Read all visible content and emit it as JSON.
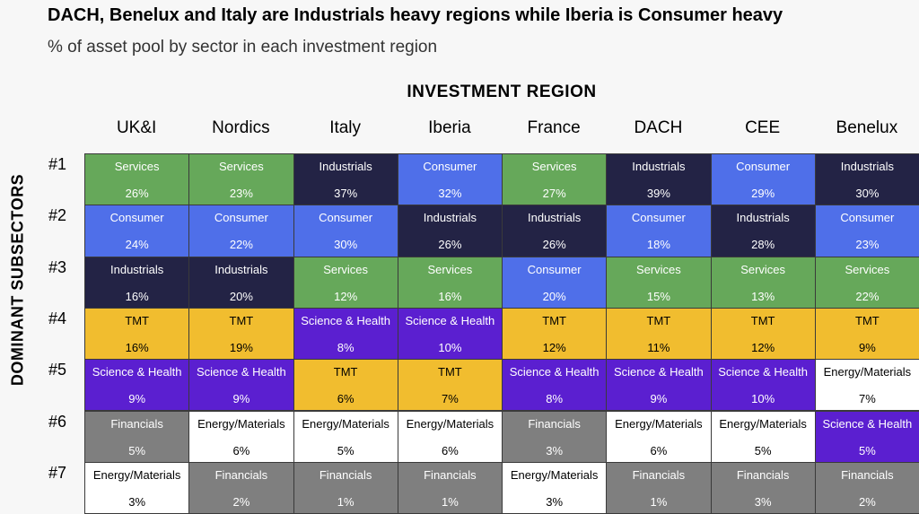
{
  "title": "DACH, Benelux and Italy are Industrials heavy regions while Iberia is Consumer heavy",
  "subtitle": "% of asset pool by sector in each investment region",
  "chart_data": {
    "type": "table",
    "column_axis_title": "INVESTMENT REGION",
    "row_axis_title": "DOMINANT SUBSECTORS",
    "columns": [
      "UK&I",
      "Nordics",
      "Italy",
      "Iberia",
      "France",
      "DACH",
      "CEE",
      "Benelux"
    ],
    "rows": [
      "#1",
      "#2",
      "#3",
      "#4",
      "#5",
      "#6",
      "#7"
    ],
    "sector_colors": {
      "Services": "#66a85a",
      "Industrials": "#232345",
      "Consumer": "#4f6fe9",
      "TMT": "#f1bd2f",
      "Science & Health": "#5b1fd0",
      "Financials": "#7f7f7f",
      "Energy/Materials": "#ffffff"
    },
    "cells": [
      [
        {
          "sector": "Services",
          "pct": "26%"
        },
        {
          "sector": "Services",
          "pct": "23%"
        },
        {
          "sector": "Industrials",
          "pct": "37%"
        },
        {
          "sector": "Consumer",
          "pct": "32%"
        },
        {
          "sector": "Services",
          "pct": "27%"
        },
        {
          "sector": "Industrials",
          "pct": "39%"
        },
        {
          "sector": "Consumer",
          "pct": "29%"
        },
        {
          "sector": "Industrials",
          "pct": "30%"
        }
      ],
      [
        {
          "sector": "Consumer",
          "pct": "24%"
        },
        {
          "sector": "Consumer",
          "pct": "22%"
        },
        {
          "sector": "Consumer",
          "pct": "30%"
        },
        {
          "sector": "Industrials",
          "pct": "26%"
        },
        {
          "sector": "Industrials",
          "pct": "26%"
        },
        {
          "sector": "Consumer",
          "pct": "18%"
        },
        {
          "sector": "Industrials",
          "pct": "28%"
        },
        {
          "sector": "Consumer",
          "pct": "23%"
        }
      ],
      [
        {
          "sector": "Industrials",
          "pct": "16%"
        },
        {
          "sector": "Industrials",
          "pct": "20%"
        },
        {
          "sector": "Services",
          "pct": "12%"
        },
        {
          "sector": "Services",
          "pct": "16%"
        },
        {
          "sector": "Consumer",
          "pct": "20%"
        },
        {
          "sector": "Services",
          "pct": "15%"
        },
        {
          "sector": "Services",
          "pct": "13%"
        },
        {
          "sector": "Services",
          "pct": "22%"
        }
      ],
      [
        {
          "sector": "TMT",
          "pct": "16%"
        },
        {
          "sector": "TMT",
          "pct": "19%"
        },
        {
          "sector": "Science & Health",
          "pct": "8%"
        },
        {
          "sector": "Science & Health",
          "pct": "10%"
        },
        {
          "sector": "TMT",
          "pct": "12%"
        },
        {
          "sector": "TMT",
          "pct": "11%"
        },
        {
          "sector": "TMT",
          "pct": "12%"
        },
        {
          "sector": "TMT",
          "pct": "9%"
        }
      ],
      [
        {
          "sector": "Science & Health",
          "pct": "9%"
        },
        {
          "sector": "Science & Health",
          "pct": "9%"
        },
        {
          "sector": "TMT",
          "pct": "6%"
        },
        {
          "sector": "TMT",
          "pct": "7%"
        },
        {
          "sector": "Science & Health",
          "pct": "8%"
        },
        {
          "sector": "Science & Health",
          "pct": "9%"
        },
        {
          "sector": "Science & Health",
          "pct": "10%"
        },
        {
          "sector": "Energy/Materials",
          "pct": "7%"
        }
      ],
      [
        {
          "sector": "Financials",
          "pct": "5%"
        },
        {
          "sector": "Energy/Materials",
          "pct": "6%"
        },
        {
          "sector": "Energy/Materials",
          "pct": "5%"
        },
        {
          "sector": "Energy/Materials",
          "pct": "6%"
        },
        {
          "sector": "Financials",
          "pct": "3%"
        },
        {
          "sector": "Energy/Materials",
          "pct": "6%"
        },
        {
          "sector": "Energy/Materials",
          "pct": "5%"
        },
        {
          "sector": "Science & Health",
          "pct": "5%"
        }
      ],
      [
        {
          "sector": "Energy/Materials",
          "pct": "3%"
        },
        {
          "sector": "Financials",
          "pct": "2%"
        },
        {
          "sector": "Financials",
          "pct": "1%"
        },
        {
          "sector": "Financials",
          "pct": "1%"
        },
        {
          "sector": "Energy/Materials",
          "pct": "3%"
        },
        {
          "sector": "Financials",
          "pct": "1%"
        },
        {
          "sector": "Financials",
          "pct": "3%"
        },
        {
          "sector": "Financials",
          "pct": "2%"
        }
      ]
    ]
  }
}
